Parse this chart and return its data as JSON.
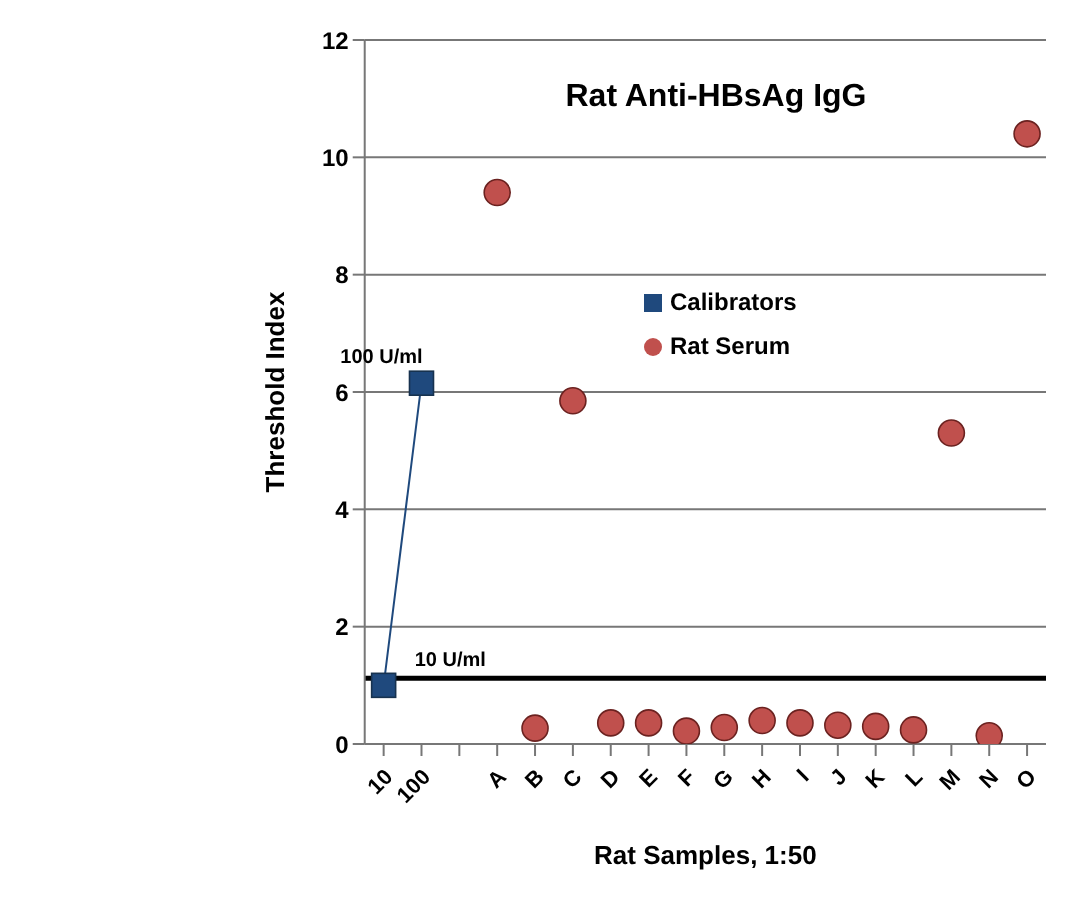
{
  "chart_data": {
    "type": "scatter",
    "title": "Rat Anti-HBsAg IgG",
    "xlabel": "Rat Samples, 1:50",
    "ylabel": "Threshold Index",
    "categories": [
      "10",
      "100",
      null,
      "A",
      "B",
      "C",
      "D",
      "E",
      "F",
      "G",
      "H",
      "I",
      "J",
      "K",
      "L",
      "M",
      "N",
      "O"
    ],
    "series": [
      {
        "name": "Calibrators",
        "type": "line",
        "marker": "square",
        "color": "#1f497d",
        "values": [
          1.0,
          6.15,
          null,
          null,
          null,
          null,
          null,
          null,
          null,
          null,
          null,
          null,
          null,
          null,
          null,
          null,
          null,
          null
        ]
      },
      {
        "name": "Rat Serum",
        "marker": "circle",
        "color": "#c0504d",
        "values": [
          null,
          null,
          null,
          9.4,
          0.27,
          5.85,
          0.36,
          0.36,
          0.22,
          0.28,
          0.4,
          0.36,
          0.32,
          0.3,
          0.24,
          5.3,
          0.14,
          10.4
        ]
      }
    ],
    "ylim": [
      0,
      12
    ],
    "yticks": [
      0,
      2,
      4,
      6,
      8,
      10,
      12
    ],
    "grid": "y",
    "legend": "center",
    "ref_lines": [
      {
        "axis": "y",
        "value": 1.12,
        "label": "10 U/ml",
        "color": "#000000"
      }
    ],
    "annotations": [
      {
        "text": "100 U/ml",
        "x": "100",
        "y": 6.15
      }
    ]
  }
}
